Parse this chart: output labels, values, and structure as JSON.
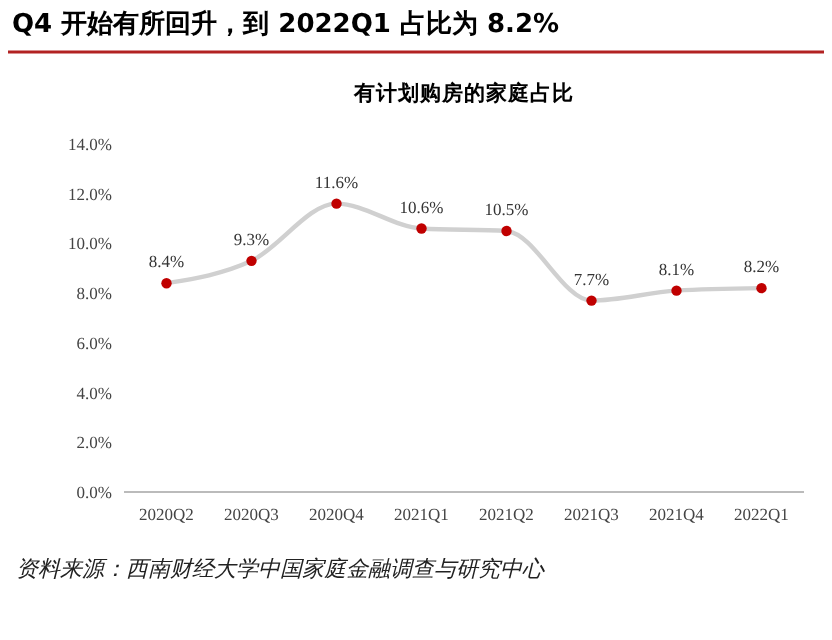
{
  "chart_data": {
    "type": "line",
    "title": "Q4 开始有所回升，到 2022Q1 占比为 8.2%",
    "subtitle": "有计划购房的家庭占比",
    "categories": [
      "2020Q2",
      "2020Q3",
      "2020Q4",
      "2021Q1",
      "2021Q2",
      "2021Q3",
      "2021Q4",
      "2022Q1"
    ],
    "series": [
      {
        "color": "#d0d0d0",
        "values": [
          8.4,
          9.3,
          11.6,
          10.6,
          10.5,
          7.7,
          8.1,
          8.2
        ],
        "value_labels": [
          "8.4%",
          "9.3%",
          "11.6%",
          "10.6%",
          "10.5%",
          "7.7%",
          "8.1%",
          "8.2%"
        ]
      }
    ],
    "marker": "circle",
    "line_style": "solid",
    "grid": false,
    "ylim": [
      0,
      14
    ],
    "yticks": [
      {
        "value": 0,
        "label": "0.0%"
      },
      {
        "value": 2,
        "label": "2.0%"
      },
      {
        "value": 4,
        "label": "4.0%"
      },
      {
        "value": 6,
        "label": "6.0%"
      },
      {
        "value": 8,
        "label": "8.0%"
      },
      {
        "value": 10,
        "label": "10.0%"
      },
      {
        "value": 12,
        "label": "12.0%"
      },
      {
        "value": 14,
        "label": "14.0%"
      }
    ],
    "annotations": [
      "资料来源：西南财经大学中国家庭金融调查与研究中心"
    ]
  }
}
